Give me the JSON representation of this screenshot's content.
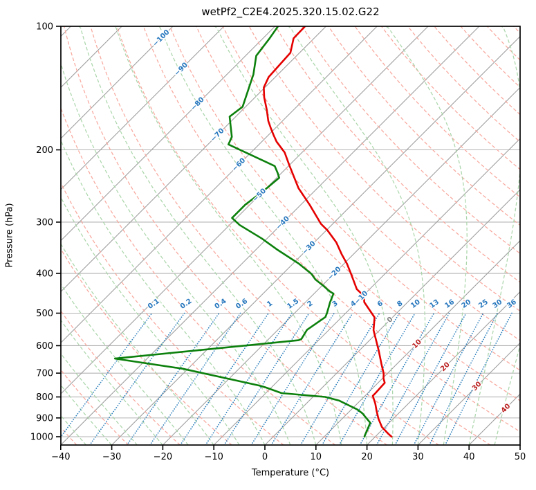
{
  "title": "wetPf2_C2E4.2025.320.15.02.G22",
  "axes": {
    "x_label": "Temperature (°C)",
    "y_label": "Pressure (hPa)",
    "x_ticks": [
      -40,
      -30,
      -20,
      -10,
      0,
      10,
      20,
      30,
      40,
      50
    ],
    "y_ticks": [
      100,
      200,
      300,
      400,
      500,
      600,
      700,
      800,
      900,
      1000
    ]
  },
  "colors": {
    "temperature": "#e50000",
    "dewpoint": "#0c800c",
    "isotherm": "#9c9c9c",
    "gridline": "#b3b3b3",
    "dry_adiabat": "#f8a89e",
    "moist_adiabat": "#abd6ab",
    "mixing_ratio": "#3182bd",
    "cold_label": "#2878be",
    "zero_label": "#808080",
    "warm_label": "#bb2222",
    "spine": "#000000"
  },
  "chart_data": {
    "type": "line",
    "chart_kind": "skew-t-log-p",
    "title": "wetPf2_C2E4.2025.320.15.02.G22",
    "xlabel": "Temperature (°C)",
    "ylabel": "Pressure (hPa)",
    "x_range_degC": [
      -40,
      50
    ],
    "pressure_range_hPa": [
      100,
      1048
    ],
    "skew_deg": 45,
    "grid": true,
    "isotherm_step_degC": 10,
    "isotherm_labels": [
      {
        "value": -100,
        "kind": "cold"
      },
      {
        "value": -90,
        "kind": "cold"
      },
      {
        "value": -80,
        "kind": "cold"
      },
      {
        "value": -70,
        "kind": "cold"
      },
      {
        "value": -60,
        "kind": "cold"
      },
      {
        "value": -50,
        "kind": "cold"
      },
      {
        "value": -40,
        "kind": "cold"
      },
      {
        "value": -30,
        "kind": "cold"
      },
      {
        "value": -20,
        "kind": "cold"
      },
      {
        "value": -10,
        "kind": "cold"
      },
      {
        "value": 0,
        "kind": "zero"
      },
      {
        "value": 10,
        "kind": "warm"
      },
      {
        "value": 20,
        "kind": "warm"
      },
      {
        "value": 30,
        "kind": "warm"
      },
      {
        "value": 40,
        "kind": "warm"
      }
    ],
    "mixing_ratio_lines_g_per_kg": [
      0.1,
      0.2,
      0.4,
      0.6,
      1,
      1.5,
      2,
      3,
      4,
      6,
      8,
      10,
      13,
      16,
      20,
      25,
      30,
      36
    ],
    "dry_adiabats_theta_degC": {
      "start": -50,
      "end": 200,
      "step": 10
    },
    "moist_adiabats_start_degC": {
      "start": -60,
      "end": 45,
      "step": 5
    },
    "series": [
      {
        "name": "temperature",
        "color_key": "temperature",
        "points_p_T": [
          [
            100,
            -74.1
          ],
          [
            107,
            -74.0
          ],
          [
            116,
            -71.8
          ],
          [
            133,
            -71.3
          ],
          [
            141,
            -70.2
          ],
          [
            149,
            -68.2
          ],
          [
            160,
            -65.2
          ],
          [
            170,
            -62.8
          ],
          [
            177,
            -60.9
          ],
          [
            184,
            -59.0
          ],
          [
            191,
            -57.1
          ],
          [
            203,
            -53.4
          ],
          [
            218,
            -50.0
          ],
          [
            248,
            -43.7
          ],
          [
            272,
            -38.3
          ],
          [
            303,
            -32.3
          ],
          [
            314,
            -29.8
          ],
          [
            336,
            -25.7
          ],
          [
            360,
            -22.2
          ],
          [
            379,
            -19.4
          ],
          [
            398,
            -17.0
          ],
          [
            437,
            -12.5
          ],
          [
            454,
            -9.8
          ],
          [
            470,
            -8.5
          ],
          [
            512,
            -3.5
          ],
          [
            550,
            -1.2
          ],
          [
            618,
            3.9
          ],
          [
            667,
            7.1
          ],
          [
            702,
            9.3
          ],
          [
            721,
            10.2
          ],
          [
            739,
            11.3
          ],
          [
            783,
            11.5
          ],
          [
            795,
            11.5
          ],
          [
            830,
            13.5
          ],
          [
            863,
            15.1
          ],
          [
            904,
            17.1
          ],
          [
            947,
            19.4
          ],
          [
            984,
            22.0
          ],
          [
            1000,
            23.2
          ]
        ]
      },
      {
        "name": "dewpoint",
        "color_key": "dewpoint",
        "points_p_T": [
          [
            100,
            -79.4
          ],
          [
            107,
            -78.7
          ],
          [
            118,
            -77.9
          ],
          [
            131,
            -74.8
          ],
          [
            157,
            -70.6
          ],
          [
            166,
            -71.2
          ],
          [
            186,
            -66.8
          ],
          [
            194,
            -66.0
          ],
          [
            219,
            -52.7
          ],
          [
            228,
            -50.7
          ],
          [
            234,
            -49.5
          ],
          [
            251,
            -50.0
          ],
          [
            272,
            -50.9
          ],
          [
            293,
            -50.9
          ],
          [
            305,
            -48.0
          ],
          [
            329,
            -41.0
          ],
          [
            351,
            -35.6
          ],
          [
            379,
            -28.8
          ],
          [
            401,
            -24.4
          ],
          [
            414,
            -22.5
          ],
          [
            429,
            -19.7
          ],
          [
            443,
            -17.3
          ],
          [
            448,
            -16.2
          ],
          [
            470,
            -15.2
          ],
          [
            499,
            -13.7
          ],
          [
            511,
            -13.2
          ],
          [
            549,
            -14.3
          ],
          [
            578,
            -13.6
          ],
          [
            582,
            -13.9
          ],
          [
            645,
            -46.3
          ],
          [
            683,
            -31.0
          ],
          [
            750,
            -12.9
          ],
          [
            758,
            -11.2
          ],
          [
            783,
            -6.9
          ],
          [
            800,
            2.4
          ],
          [
            817,
            5.9
          ],
          [
            838,
            8.6
          ],
          [
            858,
            11.1
          ],
          [
            877,
            12.9
          ],
          [
            898,
            14.4
          ],
          [
            925,
            16.3
          ],
          [
            997,
            17.8
          ],
          [
            1000,
            17.9
          ]
        ]
      }
    ]
  }
}
